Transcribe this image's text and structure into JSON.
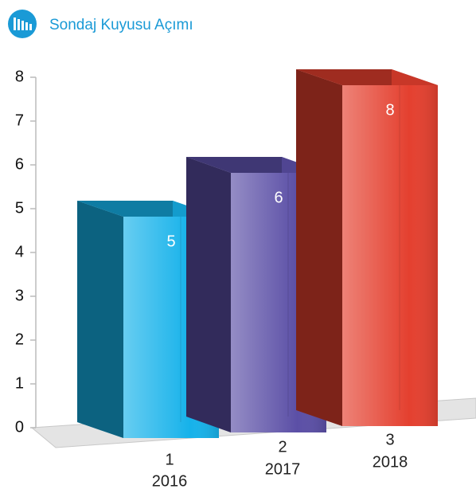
{
  "chart_data": {
    "type": "bar3d",
    "title": "Sondaj Kuyusu Açımı",
    "categories": [
      "1",
      "2",
      "3"
    ],
    "years": [
      "2016",
      "2017",
      "2018"
    ],
    "values": [
      5,
      6,
      8
    ],
    "colors": [
      "#16b2ea",
      "#5b4fa6",
      "#e4402f"
    ],
    "ylim": [
      0,
      8
    ],
    "yticks": [
      0,
      1,
      2,
      3,
      4,
      5,
      6,
      7,
      8
    ]
  }
}
